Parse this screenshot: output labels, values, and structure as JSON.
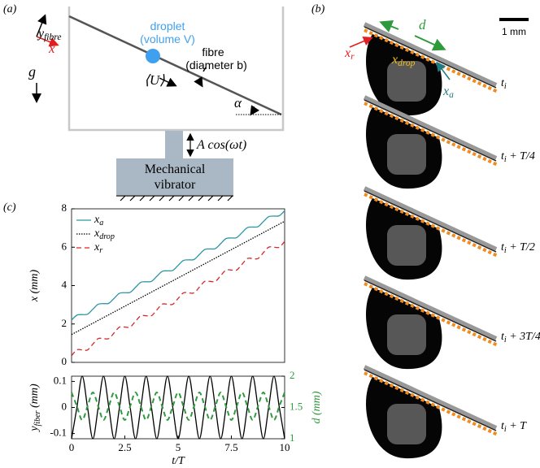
{
  "panel_a": {
    "label": "(a)",
    "axis_x": "x",
    "axis_y": "y_fibre",
    "droplet": "droplet",
    "droplet_volume": "(volume V)",
    "fibre": "fibre",
    "fibre_diameter": "(diameter b)",
    "velocity": "⟨U⟩",
    "gravity": "g",
    "angle": "α",
    "forcing": "A cos(ωt)",
    "vibrator": [
      "Mechanical",
      "vibrator"
    ]
  },
  "panel_b": {
    "label": "(b)",
    "spacing": "d",
    "scale_bar": "1 mm",
    "receding": "x_r",
    "drop": "x_drop",
    "advancing": "x_a",
    "frames": [
      "t_i",
      "t_i + T/4",
      "t_i + T/2",
      "t_i + 3T/4",
      "t_i + T"
    ]
  },
  "panel_c_label": "(c)",
  "chart_data": [
    {
      "type": "line",
      "y_label": "x (mm)",
      "xlim": [
        0,
        10
      ],
      "ylim": [
        0,
        8
      ],
      "yticks": [
        0,
        2,
        4,
        6,
        8
      ],
      "legend": "upper left",
      "x": [
        0,
        0.25,
        0.5,
        0.75,
        1,
        1.25,
        1.5,
        1.75,
        2,
        2.25,
        2.5,
        2.75,
        3,
        3.25,
        3.5,
        3.75,
        4,
        4.25,
        4.5,
        4.75,
        5,
        5.25,
        5.5,
        5.75,
        6,
        6.25,
        6.5,
        6.75,
        7,
        7.25,
        7.5,
        7.75,
        8,
        8.25,
        8.5,
        8.75,
        9,
        9.25,
        9.5,
        9.75,
        10
      ],
      "series": [
        {
          "name": "x_a",
          "color": "#2b96a3",
          "style": "solid",
          "values": [
            2.2,
            2.46,
            2.49,
            2.51,
            2.77,
            3.03,
            3.06,
            3.08,
            3.34,
            3.6,
            3.63,
            3.65,
            3.91,
            4.17,
            4.2,
            4.22,
            4.48,
            4.74,
            4.77,
            4.79,
            5.05,
            5.31,
            5.34,
            5.36,
            5.62,
            5.88,
            5.91,
            5.93,
            6.19,
            6.45,
            6.48,
            6.5,
            6.76,
            7.02,
            7.05,
            7.07,
            7.33,
            7.59,
            7.62,
            7.64,
            7.9
          ]
        },
        {
          "name": "x_drop",
          "color": "#000000",
          "style": "dotted",
          "x": [
            0,
            10
          ],
          "values": [
            1.45,
            7.35
          ]
        },
        {
          "name": "x_r",
          "color": "#d62728",
          "style": "dashed",
          "values": [
            0.35,
            0.65,
            0.65,
            0.65,
            0.95,
            1.24,
            1.24,
            1.24,
            1.54,
            1.84,
            1.84,
            1.84,
            2.14,
            2.43,
            2.43,
            2.43,
            2.73,
            3.03,
            3.03,
            3.03,
            3.33,
            3.62,
            3.62,
            3.62,
            3.92,
            4.22,
            4.22,
            4.22,
            4.52,
            4.81,
            4.81,
            4.81,
            5.11,
            5.41,
            5.41,
            5.41,
            5.71,
            6.0,
            6.0,
            6.0,
            6.3
          ]
        }
      ]
    },
    {
      "type": "line",
      "x_label": "t/T",
      "y_label": "y_fiber (mm)",
      "y2_label": "d (mm)",
      "xlim": [
        0,
        10
      ],
      "ylim": [
        -0.12,
        0.12
      ],
      "y2lim": [
        1,
        2
      ],
      "xticks": [
        0,
        2.5,
        5,
        7.5,
        10
      ],
      "yticks": [
        -0.1,
        0,
        0.1
      ],
      "y2ticks": [
        1,
        1.5,
        2
      ],
      "x": [
        0,
        0.25,
        0.5,
        0.75,
        1,
        1.25,
        1.5,
        1.75,
        2,
        2.25,
        2.5,
        2.75,
        3,
        3.25,
        3.5,
        3.75,
        4,
        4.25,
        4.5,
        4.75,
        5,
        5.25,
        5.5,
        5.75,
        6,
        6.25,
        6.5,
        6.75,
        7,
        7.25,
        7.5,
        7.75,
        8,
        8.25,
        8.5,
        8.75,
        9,
        9.25,
        9.5,
        9.75,
        10
      ],
      "series": [
        {
          "color": "#000000",
          "style": "solid",
          "values": [
            -0.12,
            0,
            0.12,
            0,
            -0.12,
            0,
            0.12,
            0,
            -0.12,
            0,
            0.12,
            0,
            -0.12,
            0,
            0.12,
            0,
            -0.12,
            0,
            0.12,
            0,
            -0.12,
            0,
            0.12,
            0,
            -0.12,
            0,
            0.12,
            0,
            -0.12,
            0,
            0.12,
            0,
            -0.12,
            0,
            0.12,
            0,
            -0.12,
            0,
            0.12,
            0,
            -0.12
          ]
        },
        {
          "color": "#2e9a3c",
          "style": "dashed",
          "axis": "y2",
          "values": [
            1.74,
            1.52,
            1.3,
            1.52,
            1.74,
            1.52,
            1.3,
            1.52,
            1.74,
            1.52,
            1.3,
            1.52,
            1.74,
            1.52,
            1.3,
            1.52,
            1.74,
            1.52,
            1.3,
            1.52,
            1.74,
            1.52,
            1.3,
            1.52,
            1.74,
            1.52,
            1.3,
            1.52,
            1.74,
            1.52,
            1.3,
            1.52,
            1.74,
            1.52,
            1.3,
            1.52,
            1.74,
            1.52,
            1.3,
            1.52,
            1.74
          ]
        }
      ]
    }
  ]
}
